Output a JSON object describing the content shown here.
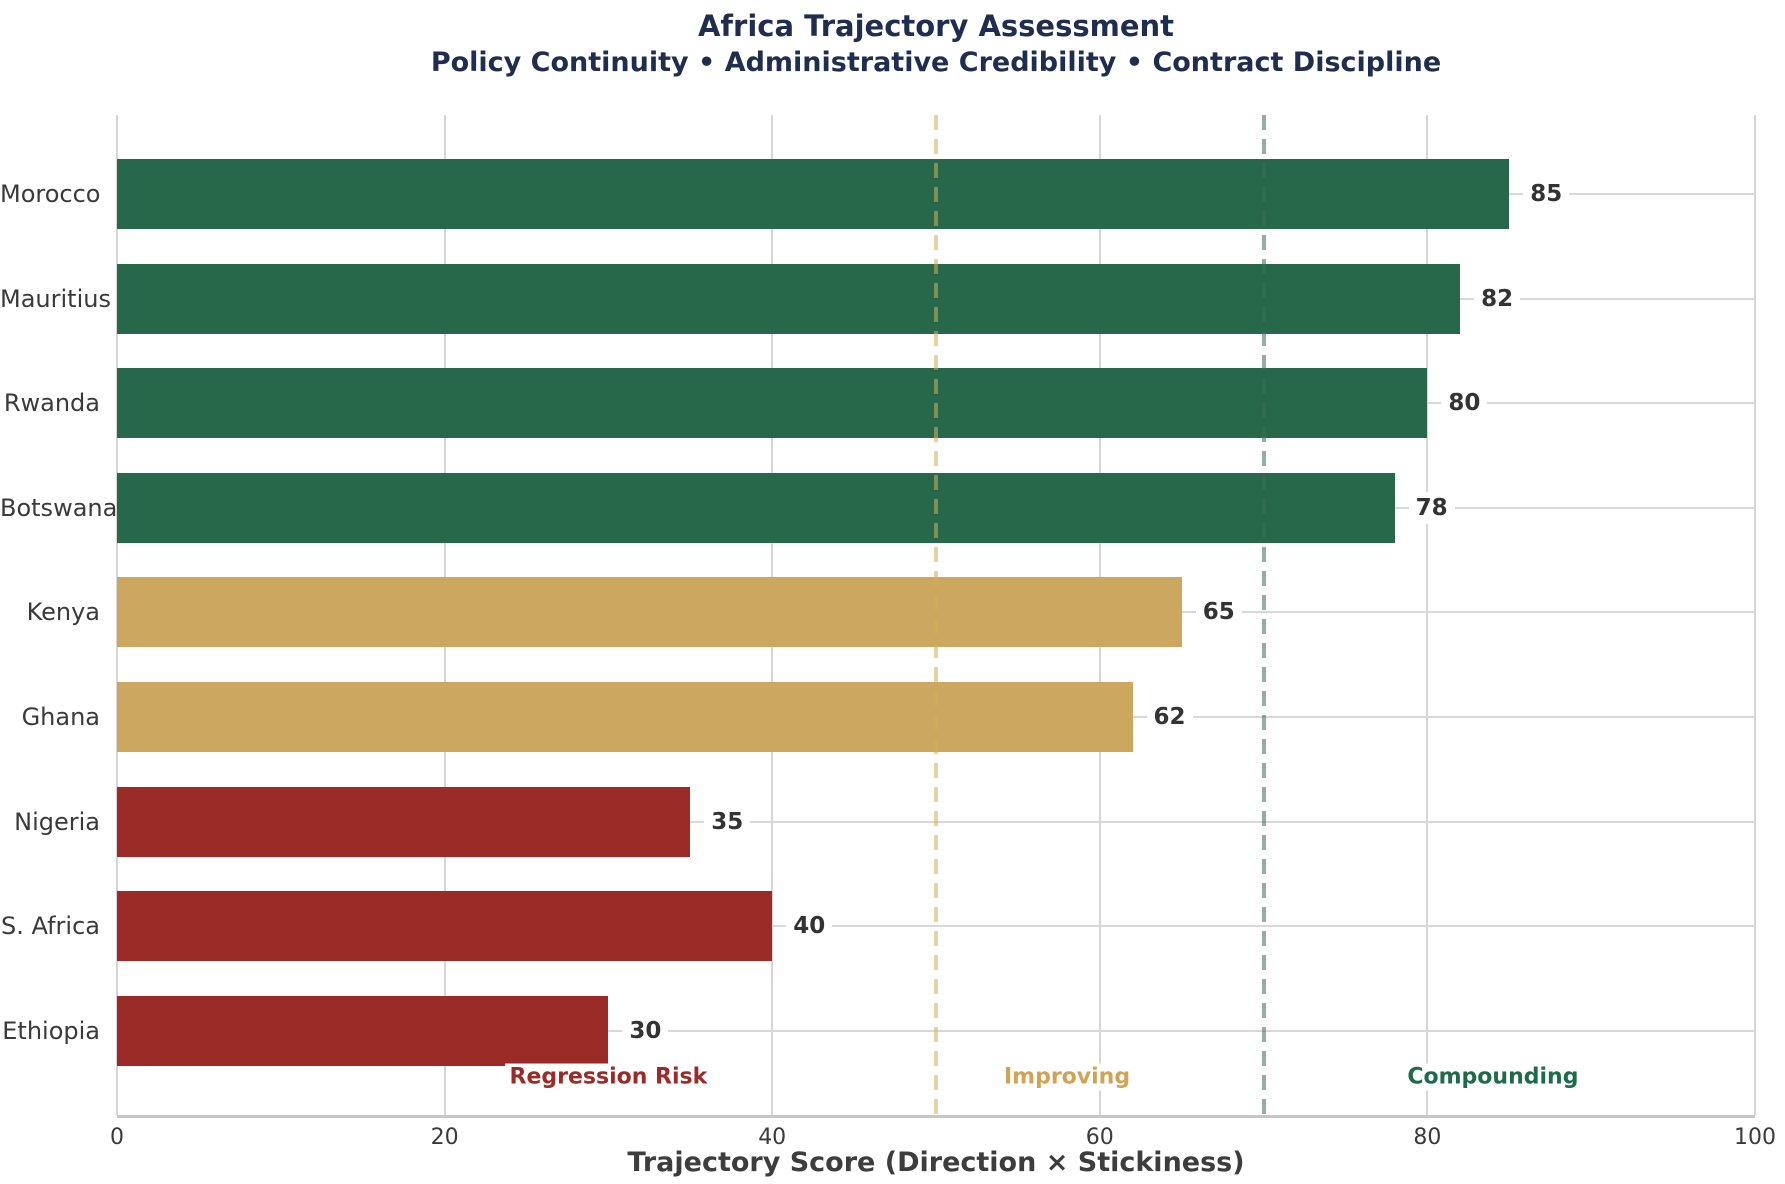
{
  "title": "Africa Trajectory Assessment",
  "subtitle": "Policy Continuity • Administrative Credibility • Contract Discipline",
  "chart_data": {
    "type": "bar",
    "orientation": "horizontal",
    "title": "Africa Trajectory Assessment",
    "subtitle": "Policy Continuity • Administrative Credibility • Contract Discipline",
    "xlabel": "Trajectory Score (Direction × Stickiness)",
    "ylabel": "",
    "xlim": [
      0,
      100
    ],
    "xticks": [
      "0",
      "20",
      "40",
      "60",
      "80",
      "100"
    ],
    "grid": "on",
    "categories": [
      "Morocco",
      "Mauritius",
      "Rwanda",
      "Botswana",
      "Kenya",
      "Ghana",
      "Nigeria",
      "S. Africa",
      "Ethiopia"
    ],
    "values": [
      85,
      82,
      80,
      78,
      65,
      62,
      35,
      40,
      30
    ],
    "value_labels": [
      "85",
      "82",
      "80",
      "78",
      "65",
      "62",
      "35",
      "40",
      "30"
    ],
    "bar_colors": [
      "#266849",
      "#266849",
      "#266849",
      "#266849",
      "#cca75f",
      "#cca75f",
      "#9a2b26",
      "#9a2b26",
      "#9a2b26"
    ],
    "reference_lines": [
      {
        "x": 50,
        "style": "dashed",
        "color_rgba": "rgba(208,175,90,0.55)"
      },
      {
        "x": 70,
        "style": "dashed",
        "color_rgba": "rgba(57,110,90,0.55)"
      }
    ],
    "zone_labels": [
      {
        "text": "Regression Risk",
        "x": 30,
        "color": "#9a2b26"
      },
      {
        "text": "Improving",
        "x": 58,
        "color": "#cfa455"
      },
      {
        "text": "Compounding",
        "x": 84,
        "color": "#1e6b4a"
      }
    ]
  },
  "colors": {
    "title_navy": "#1f2d4e",
    "text_gray": "#3a3a3a",
    "grid_gray": "#d6d6d6",
    "axis_gray": "#c6c6c6",
    "green": "#266849",
    "gold": "#cca75f",
    "red": "#9a2b26",
    "background": "#ffffff"
  }
}
